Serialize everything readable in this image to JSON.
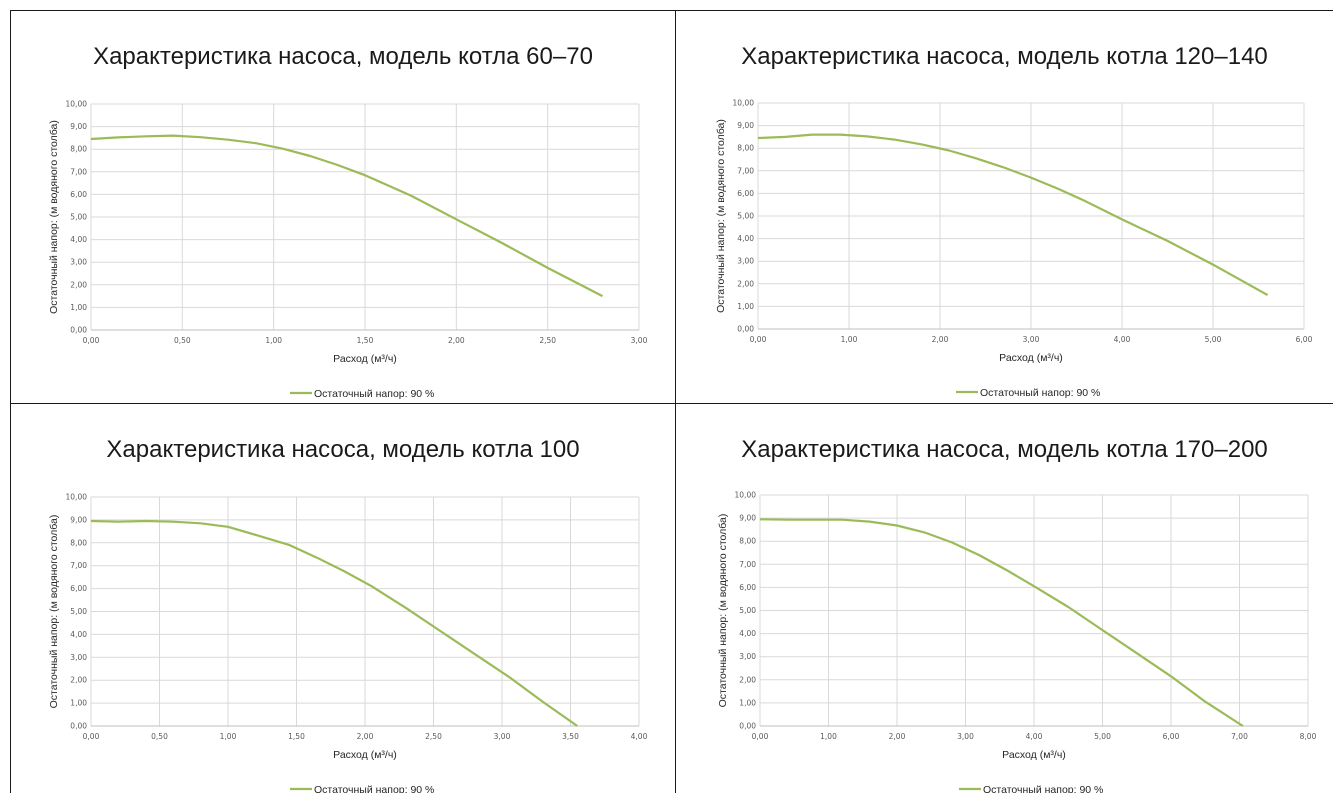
{
  "chart_data": [
    {
      "type": "line",
      "title": "Характеристика насоса, модель котла 60–70",
      "xlabel": "Расход (м³/ч)",
      "ylabel": "Остаточный напор: (м водяного столба)",
      "xlim": [
        0,
        3
      ],
      "ylim": [
        0,
        10
      ],
      "x_ticks": [
        "0,00",
        "0,50",
        "1,00",
        "1,50",
        "2,00",
        "2,50",
        "3,00"
      ],
      "y_ticks": [
        "0,00",
        "1,00",
        "2,00",
        "3,00",
        "4,00",
        "5,00",
        "6,00",
        "7,00",
        "8,00",
        "9,00",
        "10,00"
      ],
      "grid": true,
      "legend_position": "bottom",
      "series": [
        {
          "name": "Остаточный напор: 90 %",
          "color": "#9bbb59",
          "x": [
            0.0,
            0.15,
            0.3,
            0.45,
            0.6,
            0.75,
            0.9,
            1.05,
            1.2,
            1.35,
            1.5,
            1.75,
            2.0,
            2.25,
            2.5,
            2.8
          ],
          "y": [
            8.45,
            8.52,
            8.57,
            8.6,
            8.53,
            8.42,
            8.27,
            8.02,
            7.7,
            7.3,
            6.85,
            5.95,
            4.9,
            3.85,
            2.75,
            1.5
          ]
        }
      ]
    },
    {
      "type": "line",
      "title": "Характеристика насоса, модель котла 120–140",
      "xlabel": "Расход (м³/ч)",
      "ylabel": "Остаточный напор: (м водяного столба)",
      "xlim": [
        0,
        6
      ],
      "ylim": [
        0,
        10
      ],
      "x_ticks": [
        "0,00",
        "1,00",
        "2,00",
        "3,00",
        "4,00",
        "5,00",
        "6,00"
      ],
      "y_ticks": [
        "0,00",
        "1,00",
        "2,00",
        "3,00",
        "4,00",
        "5,00",
        "6,00",
        "7,00",
        "8,00",
        "9,00",
        "10,00"
      ],
      "grid": true,
      "legend_position": "bottom",
      "series": [
        {
          "name": "Остаточный напор: 90 %",
          "color": "#9bbb59",
          "x": [
            0.0,
            0.3,
            0.6,
            0.9,
            1.2,
            1.5,
            1.8,
            2.1,
            2.4,
            2.7,
            3.0,
            3.3,
            3.6,
            4.0,
            4.5,
            5.0,
            5.6
          ],
          "y": [
            8.45,
            8.5,
            8.6,
            8.6,
            8.52,
            8.38,
            8.17,
            7.9,
            7.55,
            7.15,
            6.7,
            6.2,
            5.65,
            4.85,
            3.9,
            2.85,
            1.5
          ]
        }
      ]
    },
    {
      "type": "line",
      "title": "Характеристика насоса, модель котла 100",
      "xlabel": "Расход (м³/ч)",
      "ylabel": "Остаточный напор: (м водяного столба)",
      "xlim": [
        0,
        4
      ],
      "ylim": [
        0,
        10
      ],
      "x_ticks": [
        "0,00",
        "0,50",
        "1,00",
        "1,50",
        "2,00",
        "2,50",
        "3,00",
        "3,50",
        "4,00"
      ],
      "y_ticks": [
        "0,00",
        "1,00",
        "2,00",
        "3,00",
        "4,00",
        "5,00",
        "6,00",
        "7,00",
        "8,00",
        "9,00",
        "10,00"
      ],
      "grid": true,
      "legend_position": "bottom",
      "series": [
        {
          "name": "Остаточный напор: 90 %",
          "color": "#9bbb59",
          "x": [
            0.0,
            0.2,
            0.4,
            0.6,
            0.8,
            1.0,
            1.2,
            1.45,
            1.65,
            1.85,
            2.05,
            2.3,
            2.55,
            2.8,
            3.05,
            3.3,
            3.55
          ],
          "y": [
            8.95,
            8.92,
            8.95,
            8.92,
            8.85,
            8.7,
            8.35,
            7.9,
            7.35,
            6.75,
            6.1,
            5.15,
            4.15,
            3.15,
            2.15,
            1.05,
            0.0
          ]
        }
      ]
    },
    {
      "type": "line",
      "title": "Характеристика насоса, модель котла 170–200",
      "xlabel": "Расход (м³/ч)",
      "ylabel": "Остаточный напор: (м водяного столба)",
      "xlim": [
        0,
        8
      ],
      "ylim": [
        0,
        10
      ],
      "x_ticks": [
        "0,00",
        "1,00",
        "2,00",
        "3,00",
        "4,00",
        "5,00",
        "6,00",
        "7,00",
        "8,00"
      ],
      "y_ticks": [
        "0,00",
        "1,00",
        "2,00",
        "3,00",
        "4,00",
        "5,00",
        "6,00",
        "7,00",
        "8,00",
        "9,00",
        "10,00"
      ],
      "grid": true,
      "legend_position": "bottom",
      "series": [
        {
          "name": "Остаточный напор: 90 %",
          "color": "#9bbb59",
          "x": [
            0.0,
            0.4,
            0.8,
            1.2,
            1.6,
            2.0,
            2.4,
            2.8,
            3.2,
            3.6,
            4.0,
            4.5,
            5.0,
            5.5,
            6.0,
            6.5,
            7.05
          ],
          "y": [
            8.95,
            8.93,
            8.93,
            8.93,
            8.85,
            8.68,
            8.38,
            7.95,
            7.4,
            6.75,
            6.05,
            5.15,
            4.15,
            3.15,
            2.15,
            1.05,
            0.0
          ]
        }
      ]
    }
  ]
}
